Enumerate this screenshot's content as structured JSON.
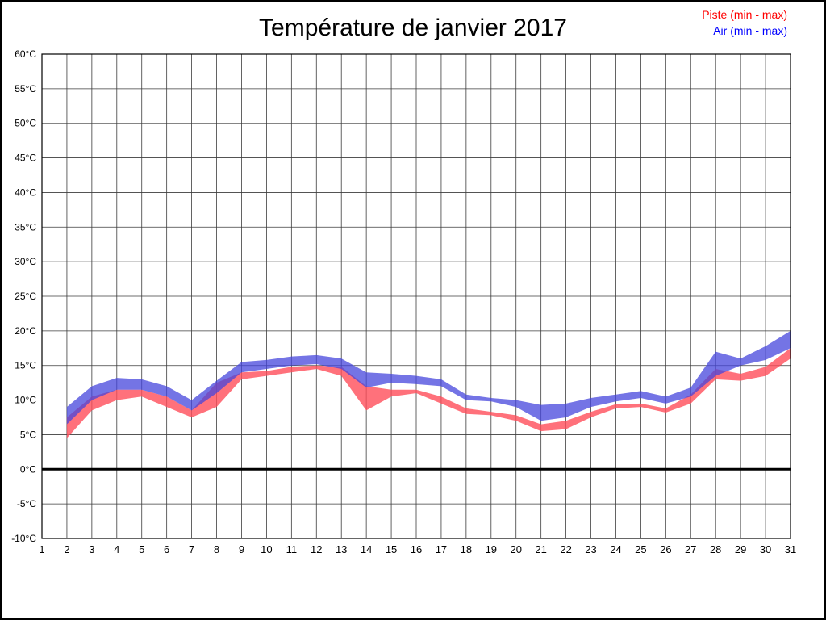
{
  "legend": {
    "piste": {
      "label": "Piste (min - max)",
      "color": "#ff0000"
    },
    "air": {
      "label": "Air (min - max)",
      "color": "#0000ff"
    }
  },
  "chart_data": {
    "type": "area",
    "title": "Température de janvier 2017",
    "x": [
      2,
      3,
      4,
      5,
      6,
      7,
      8,
      9,
      10,
      11,
      12,
      13,
      14,
      15,
      16,
      17,
      18,
      19,
      20,
      21,
      22,
      23,
      24,
      25,
      26,
      27,
      28,
      29,
      30,
      31
    ],
    "x_axis": {
      "ticks": [
        1,
        2,
        3,
        4,
        5,
        6,
        7,
        8,
        9,
        10,
        11,
        12,
        13,
        14,
        15,
        16,
        17,
        18,
        19,
        20,
        21,
        22,
        23,
        24,
        25,
        26,
        27,
        28,
        29,
        30,
        31
      ]
    },
    "y_axis": {
      "min": -10,
      "max": 60,
      "step": 5,
      "unit": "°C"
    },
    "grid": true,
    "zero_line": true,
    "legend_position": "top-right",
    "series": [
      {
        "name": "Piste",
        "fill": "#ff4d5a",
        "opacity": 0.8,
        "min": [
          4.5,
          8.5,
          10,
          10.5,
          9,
          7.5,
          9,
          13,
          13.5,
          14,
          14.5,
          13.5,
          8.5,
          10.5,
          11,
          9.5,
          8,
          7.8,
          7,
          5.5,
          5.8,
          7.5,
          8.8,
          9,
          8.2,
          9.5,
          13,
          12.8,
          13.5,
          16
        ],
        "max": [
          7.5,
          10.5,
          11.5,
          11.5,
          10.5,
          8.5,
          12.5,
          14,
          14.2,
          14.8,
          15,
          14.8,
          12,
          11.5,
          11.5,
          10.5,
          8.8,
          8.3,
          7.8,
          6.5,
          7,
          8.3,
          9.4,
          9.5,
          8.8,
          10.8,
          14.5,
          13.8,
          14.8,
          17.5
        ]
      },
      {
        "name": "Air",
        "fill": "#4646dc",
        "opacity": 0.75,
        "min": [
          6.5,
          10,
          11.5,
          11.5,
          10.5,
          8.5,
          11,
          14,
          14.5,
          15,
          15.2,
          14.5,
          11.8,
          12.5,
          12.3,
          12,
          10,
          9.8,
          9,
          7,
          7.5,
          9,
          9.8,
          10.3,
          9.5,
          10.5,
          13.5,
          15,
          15.8,
          17.5
        ],
        "max": [
          9,
          12,
          13.2,
          13,
          12,
          10,
          12.8,
          15.5,
          15.8,
          16.3,
          16.5,
          16,
          14,
          13.8,
          13.5,
          13,
          10.8,
          10.3,
          10,
          9.3,
          9.5,
          10.3,
          10.8,
          11.3,
          10.5,
          11.8,
          17,
          16,
          17.8,
          20
        ]
      }
    ]
  }
}
